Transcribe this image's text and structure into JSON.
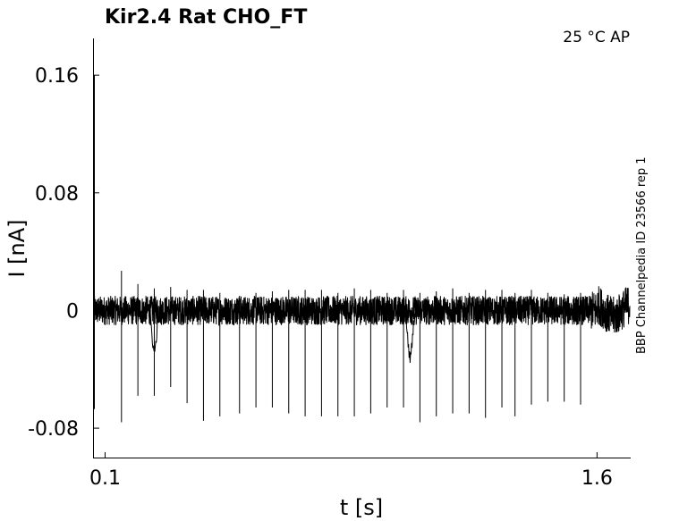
{
  "chart_data": {
    "type": "line",
    "title": "Kir2.4  Rat  CHO_FT",
    "condition_label": "25 °C  AP",
    "side_label": "BBP Channelpedia ID 23566 rep 1",
    "xlabel": "t [s]",
    "ylabel": "I [nA]",
    "xlim": [
      0.066,
      1.7
    ],
    "ylim": [
      -0.1,
      0.185
    ],
    "xticks": [
      0.1,
      1.6
    ],
    "xtick_labels": [
      "0.1",
      "1.6"
    ],
    "yticks": [
      -0.08,
      0,
      0.08,
      0.16
    ],
    "ytick_labels": [
      "-0.08",
      "0",
      "0.08",
      "0.16"
    ],
    "grid": false,
    "legend": "none",
    "baseline": 0,
    "noise_amplitude": 0.01,
    "initial_transient": {
      "t": 0.066,
      "peak": 0.16,
      "trough": -0.067
    },
    "spike_times": [
      0.15,
      0.2,
      0.25,
      0.3,
      0.35,
      0.4,
      0.45,
      0.51,
      0.56,
      0.61,
      0.66,
      0.71,
      0.76,
      0.81,
      0.86,
      0.91,
      0.96,
      1.01,
      1.06,
      1.11,
      1.16,
      1.21,
      1.26,
      1.31,
      1.35,
      1.4,
      1.45,
      1.5,
      1.55
    ],
    "spike_troughs": [
      -0.076,
      -0.058,
      -0.058,
      -0.052,
      -0.063,
      -0.075,
      -0.072,
      -0.07,
      -0.066,
      -0.066,
      -0.07,
      -0.072,
      -0.072,
      -0.072,
      -0.072,
      -0.07,
      -0.066,
      -0.066,
      -0.076,
      -0.072,
      -0.07,
      -0.07,
      -0.073,
      -0.066,
      -0.072,
      -0.064,
      -0.062,
      -0.062,
      -0.064
    ],
    "spike_peaks": [
      0.027,
      0.018,
      0.015,
      0.016,
      0.014,
      0.014,
      0.012,
      0.01,
      0.012,
      0.013,
      0.014,
      0.014,
      0.014,
      0.012,
      0.015,
      0.014,
      0.012,
      0.014,
      0.012,
      0.013,
      0.015,
      0.012,
      0.014,
      0.014,
      0.012,
      0.014,
      0.012,
      0.011,
      0.012
    ],
    "dips": [
      {
        "t": 0.25,
        "depth": -0.028
      },
      {
        "t": 1.03,
        "depth": -0.032
      }
    ]
  }
}
